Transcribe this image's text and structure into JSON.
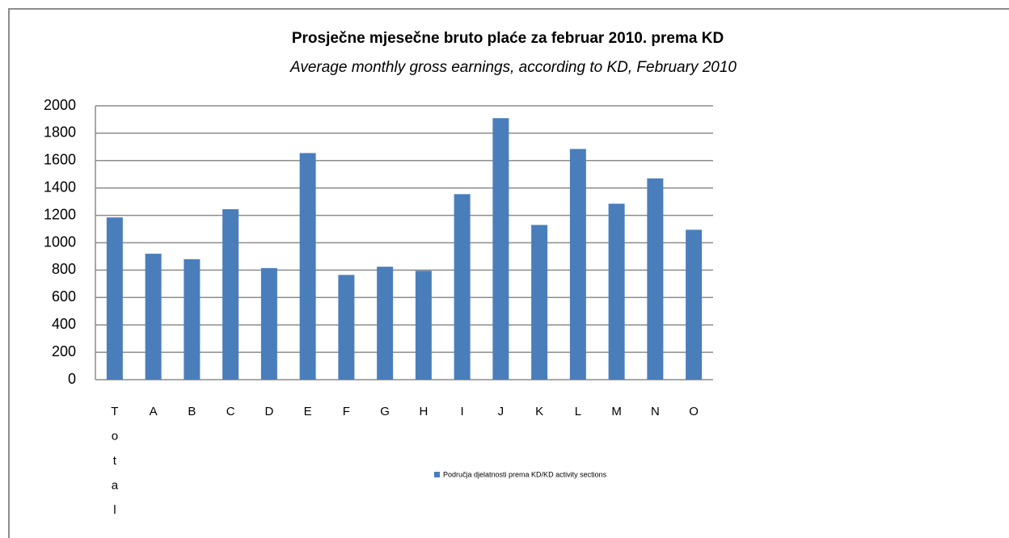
{
  "chart_data": {
    "type": "bar",
    "title": "Prosječne mjesečne bruto plaće za februar 2010. prema KD",
    "subtitle": "Average monthly gross earnings, according to KD, February 2010",
    "categories": [
      "Total",
      "A",
      "B",
      "C",
      "D",
      "E",
      "F",
      "G",
      "H",
      "I",
      "J",
      "K",
      "L",
      "M",
      "N",
      "O"
    ],
    "series": [
      {
        "name": "Područja djelatnosti prema KD/KD activity sections",
        "color": "#4a7ebb",
        "values": [
          1185,
          920,
          880,
          1245,
          815,
          1655,
          765,
          825,
          795,
          1355,
          1910,
          1130,
          1685,
          1285,
          1470,
          1095
        ]
      }
    ],
    "ylim": [
      0,
      2000
    ],
    "yticks": [
      0,
      200,
      400,
      600,
      800,
      1000,
      1200,
      1400,
      1600,
      1800,
      2000
    ],
    "grid": true,
    "legend": "bottom"
  }
}
